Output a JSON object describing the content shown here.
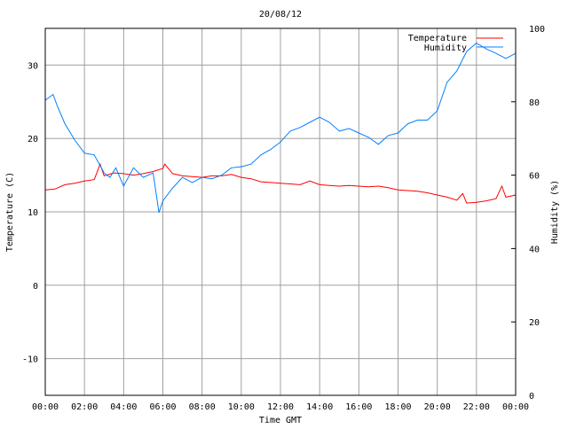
{
  "chart_data": {
    "type": "line",
    "title": "20/08/12",
    "xlabel": "Time GMT",
    "ylabel": "Temperature (C)",
    "y2label": "Humidity (%)",
    "xlim": [
      0,
      24
    ],
    "ylim": [
      -15,
      35
    ],
    "y2lim": [
      0,
      100
    ],
    "grid": true,
    "legend_position": "top-right",
    "x_ticks": [
      0,
      2,
      4,
      6,
      8,
      10,
      12,
      14,
      16,
      18,
      20,
      22,
      24
    ],
    "x_tick_labels": [
      "00:00",
      "02:00",
      "04:00",
      "06:00",
      "08:00",
      "10:00",
      "12:00",
      "14:00",
      "16:00",
      "18:00",
      "20:00",
      "22:00",
      "00:00"
    ],
    "y_ticks": [
      -10,
      0,
      10,
      20,
      30
    ],
    "y2_ticks": [
      0,
      20,
      40,
      60,
      80,
      100
    ],
    "series": [
      {
        "name": "Temperature",
        "axis": "y",
        "color": "#ff0000",
        "x": [
          0,
          0.5,
          1,
          1.5,
          2,
          2.5,
          2.8,
          3,
          3.5,
          4,
          4.5,
          5,
          5.5,
          6,
          6.1,
          6.5,
          7,
          7.5,
          8,
          8.5,
          9,
          9.5,
          10,
          10.5,
          11,
          11.5,
          12,
          12.5,
          13,
          13.5,
          14,
          14.5,
          15,
          15.5,
          16,
          16.5,
          17,
          17.5,
          18,
          18.5,
          19,
          19.5,
          20,
          20.5,
          21,
          21.3,
          21.5,
          22,
          22.5,
          23,
          23.3,
          23.5,
          24
        ],
        "values": [
          13.0,
          13.1,
          13.7,
          13.9,
          14.2,
          14.4,
          16.5,
          14.9,
          15.3,
          15.2,
          15.0,
          15.2,
          15.5,
          15.9,
          16.5,
          15.2,
          14.9,
          14.8,
          14.7,
          14.9,
          14.9,
          15.1,
          14.7,
          14.5,
          14.1,
          14.0,
          13.9,
          13.8,
          13.7,
          14.2,
          13.7,
          13.6,
          13.5,
          13.6,
          13.5,
          13.4,
          13.5,
          13.3,
          13.0,
          12.9,
          12.8,
          12.6,
          12.3,
          12.0,
          11.6,
          12.5,
          11.2,
          11.3,
          11.5,
          11.8,
          13.5,
          12.0,
          12.3
        ]
      },
      {
        "name": "Humidity",
        "axis": "y2",
        "color": "#0080ff",
        "x": [
          0,
          0.4,
          0.6,
          1,
          1.5,
          2,
          2.5,
          3,
          3.3,
          3.6,
          4,
          4.5,
          5,
          5.5,
          5.8,
          6,
          6.5,
          7,
          7.5,
          8,
          8.5,
          9,
          9.5,
          10,
          10.5,
          11,
          11.5,
          12,
          12.5,
          13,
          13.5,
          14,
          14.5,
          15,
          15.5,
          16,
          16.5,
          17,
          17.5,
          18,
          18.5,
          19,
          19.5,
          20,
          20.5,
          21,
          21.5,
          22,
          22.5,
          23,
          23.5,
          24
        ],
        "values": [
          80.4,
          82,
          79,
          74,
          69.6,
          66,
          65.5,
          60.6,
          59.4,
          62,
          57,
          62,
          59.4,
          60.6,
          49.8,
          53,
          56.5,
          59.4,
          58,
          59.4,
          59,
          60,
          62,
          62.3,
          63,
          65.5,
          67,
          69,
          72,
          73,
          74.4,
          75.8,
          74.4,
          72,
          72.7,
          71.5,
          70.3,
          68.4,
          70.8,
          71.5,
          74,
          75,
          75,
          77.5,
          85.3,
          88.4,
          93.7,
          96,
          94.4,
          93.2,
          91.8,
          93.2
        ]
      }
    ]
  }
}
